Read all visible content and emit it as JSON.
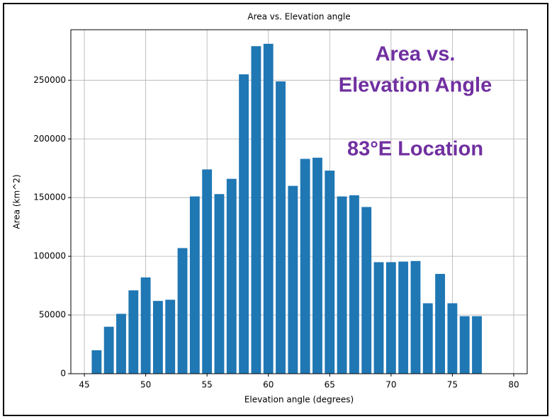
{
  "chart_data": {
    "type": "bar",
    "title": "Area vs. Elevation angle",
    "x_label": "Elevation angle (degrees)",
    "y_label": "Area (km^2)",
    "x": [
      46,
      47,
      48,
      49,
      50,
      51,
      52,
      53,
      54,
      55,
      56,
      57,
      58,
      59,
      60,
      61,
      62,
      63,
      64,
      65,
      66,
      67,
      68,
      69,
      70,
      71,
      72,
      73,
      74,
      75,
      76,
      77
    ],
    "values": [
      20000,
      40000,
      51000,
      71000,
      82000,
      62000,
      63000,
      107000,
      151000,
      174000,
      153000,
      166000,
      255000,
      279000,
      281000,
      249000,
      160000,
      183000,
      184000,
      173000,
      151000,
      152000,
      142000,
      95000,
      95000,
      95500,
      96000,
      60000,
      85000,
      60000,
      49000,
      49000
    ],
    "bar_width": 0.8,
    "color": "#1f77b4",
    "xlim": [
      43.9,
      81.1
    ],
    "xticks": [
      45,
      50,
      55,
      60,
      65,
      70,
      75,
      80
    ],
    "ylim": [
      0,
      293000
    ],
    "yticks": [
      0,
      50000,
      100000,
      150000,
      200000,
      250000
    ],
    "grid": true,
    "annotations": [
      {
        "text": "Area vs.",
        "color": "#7030a0"
      },
      {
        "text": "Elevation Angle",
        "color": "#7030a0"
      },
      {
        "text": "83°E Location",
        "color": "#7030a0"
      }
    ]
  }
}
